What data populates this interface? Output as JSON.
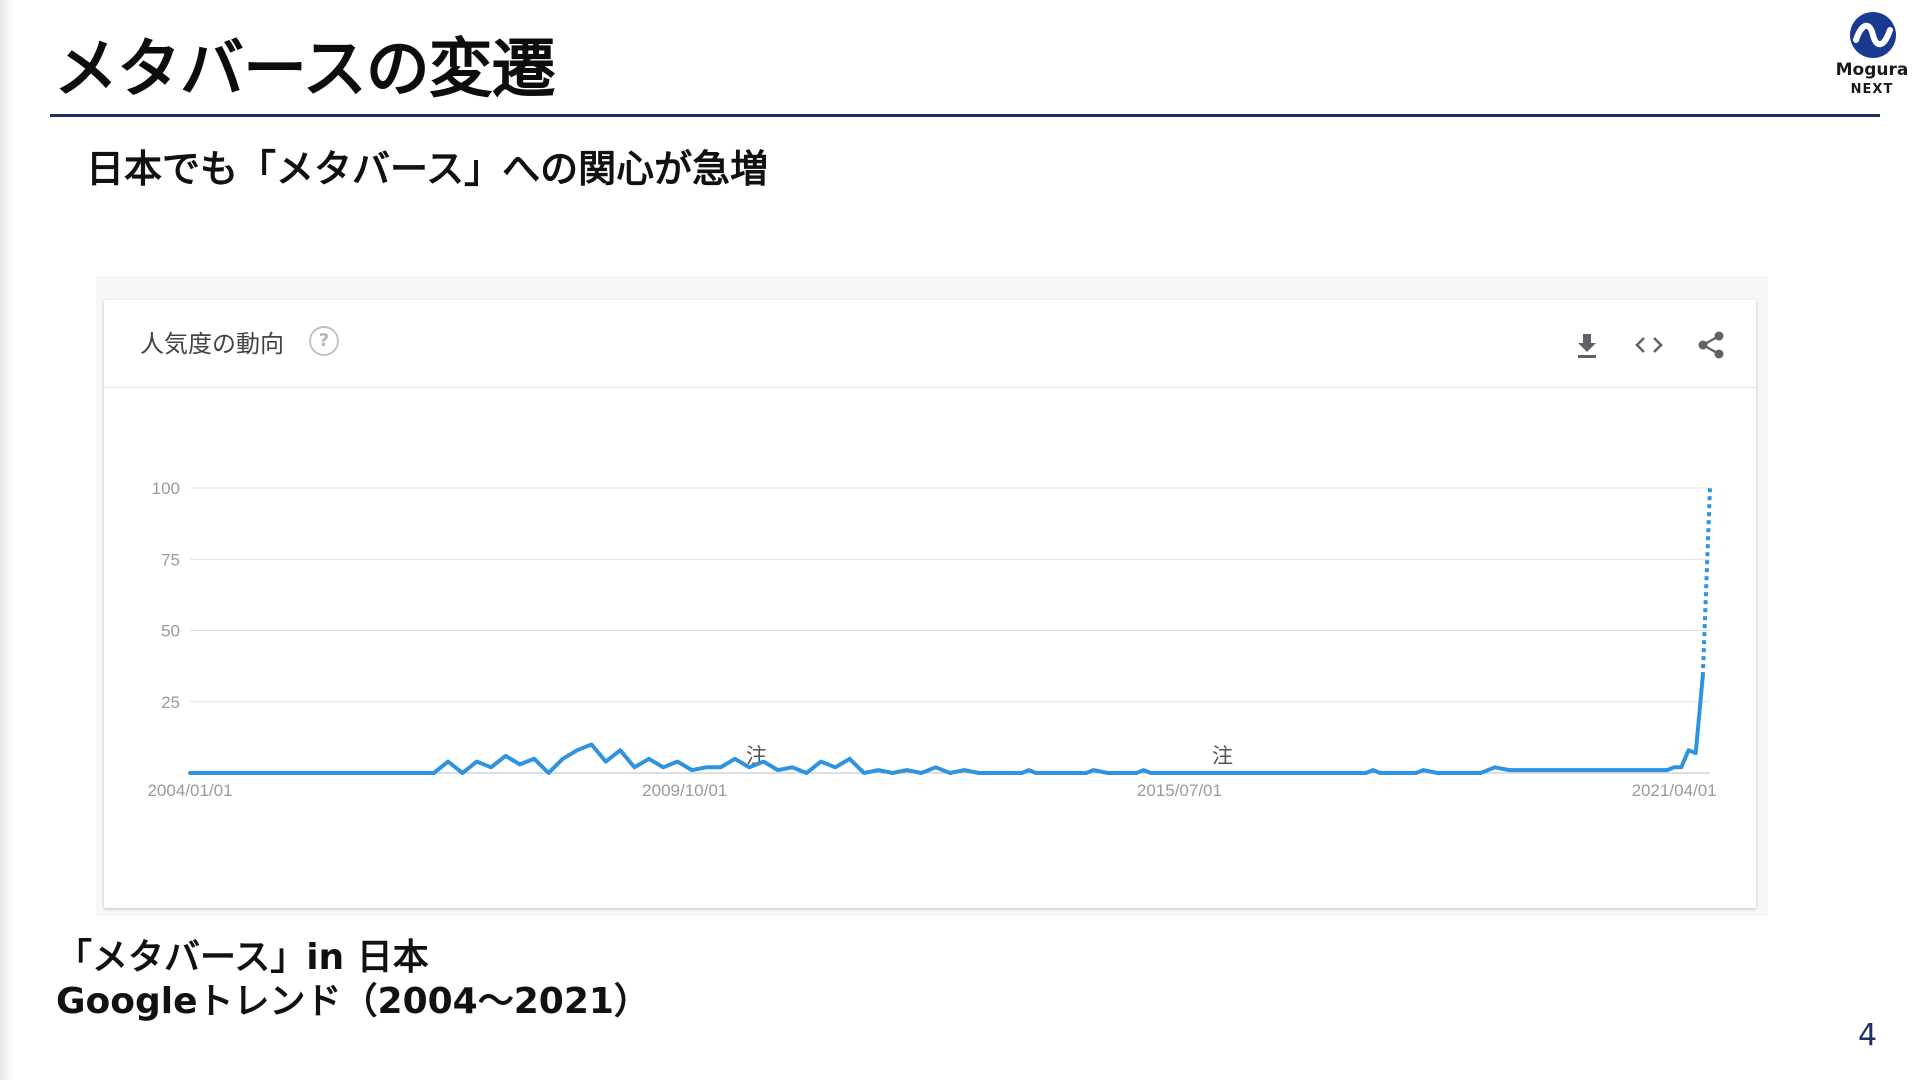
{
  "slide": {
    "title": "メタバースの変遷",
    "subtitle": "日本でも「メタバース」への関心が急増",
    "caption_line1": "「メタバース」in 日本",
    "caption_line2": "Googleトレンド（2004～2021）",
    "page_number": "4"
  },
  "logo": {
    "name": "Mogura",
    "sub": "NEXT",
    "color": "#1a3a8f"
  },
  "chart_card": {
    "title": "人気度の動向",
    "help_symbol": "?",
    "icons": [
      "download-icon",
      "embed-code-icon",
      "share-icon"
    ]
  },
  "colors": {
    "title_rule": "#1f2f6b",
    "series": "#2f93e0",
    "grid": "#e0e0e0",
    "axis_text": "#9a9a9a"
  },
  "chart_data": {
    "type": "line",
    "title": "人気度の動向",
    "xlabel": "",
    "ylabel": "",
    "ylim": [
      0,
      100
    ],
    "yticks": [
      25,
      50,
      75,
      100
    ],
    "ytick_labels": [
      "25",
      "50",
      "75",
      "100"
    ],
    "x_range": [
      "2004/01/01",
      "2021/09/01"
    ],
    "x_ticks": [
      "2004/01/01",
      "2009/10/01",
      "2015/07/01",
      "2021/04/01"
    ],
    "grid": true,
    "legend": "none",
    "annotations": [
      {
        "label": "注",
        "x": "2010/08/01"
      },
      {
        "label": "注",
        "x": "2016/01/01"
      }
    ],
    "series": [
      {
        "points": [
          [
            "2004/01/01",
            0
          ],
          [
            "2006/11/01",
            0
          ],
          [
            "2007/01/01",
            4
          ],
          [
            "2007/03/01",
            0
          ],
          [
            "2007/05/01",
            4
          ],
          [
            "2007/07/01",
            2
          ],
          [
            "2007/09/01",
            6
          ],
          [
            "2007/11/01",
            3
          ],
          [
            "2008/01/01",
            5
          ],
          [
            "2008/03/01",
            0
          ],
          [
            "2008/05/01",
            5
          ],
          [
            "2008/07/01",
            8
          ],
          [
            "2008/09/01",
            10
          ],
          [
            "2008/11/01",
            4
          ],
          [
            "2009/01/01",
            8
          ],
          [
            "2009/03/01",
            2
          ],
          [
            "2009/05/01",
            5
          ],
          [
            "2009/07/01",
            2
          ],
          [
            "2009/09/01",
            4
          ],
          [
            "2009/11/01",
            1
          ],
          [
            "2010/01/01",
            2
          ],
          [
            "2010/03/01",
            2
          ],
          [
            "2010/05/01",
            5
          ],
          [
            "2010/07/01",
            2
          ],
          [
            "2010/09/01",
            4
          ],
          [
            "2010/11/01",
            1
          ],
          [
            "2011/01/01",
            2
          ],
          [
            "2011/03/01",
            0
          ],
          [
            "2011/05/01",
            4
          ],
          [
            "2011/07/01",
            2
          ],
          [
            "2011/09/01",
            5
          ],
          [
            "2011/11/01",
            0
          ],
          [
            "2012/01/01",
            1
          ],
          [
            "2012/03/01",
            0
          ],
          [
            "2012/05/01",
            1
          ],
          [
            "2012/07/01",
            0
          ],
          [
            "2012/09/01",
            2
          ],
          [
            "2012/11/01",
            0
          ],
          [
            "2013/01/01",
            1
          ],
          [
            "2013/03/01",
            0
          ],
          [
            "2013/09/01",
            0
          ],
          [
            "2013/10/01",
            1
          ],
          [
            "2013/11/01",
            0
          ],
          [
            "2014/06/01",
            0
          ],
          [
            "2014/07/01",
            1
          ],
          [
            "2014/09/01",
            0
          ],
          [
            "2015/01/01",
            0
          ],
          [
            "2015/02/01",
            1
          ],
          [
            "2015/03/01",
            0
          ],
          [
            "2017/09/01",
            0
          ],
          [
            "2017/10/01",
            1
          ],
          [
            "2017/11/01",
            0
          ],
          [
            "2018/04/01",
            0
          ],
          [
            "2018/05/01",
            1
          ],
          [
            "2018/07/01",
            0
          ],
          [
            "2019/01/01",
            0
          ],
          [
            "2019/03/01",
            2
          ],
          [
            "2019/05/01",
            1
          ],
          [
            "2019/07/01",
            1
          ],
          [
            "2019/09/01",
            1
          ],
          [
            "2019/11/01",
            1
          ],
          [
            "2020/01/01",
            1
          ],
          [
            "2020/03/01",
            1
          ],
          [
            "2020/05/01",
            1
          ],
          [
            "2020/07/01",
            1
          ],
          [
            "2020/09/01",
            1
          ],
          [
            "2020/11/01",
            1
          ],
          [
            "2021/01/01",
            1
          ],
          [
            "2021/02/01",
            1
          ],
          [
            "2021/03/01",
            1
          ],
          [
            "2021/04/01",
            2
          ],
          [
            "2021/05/01",
            2
          ],
          [
            "2021/06/01",
            8
          ],
          [
            "2021/07/01",
            7
          ],
          [
            "2021/08/01",
            34
          ]
        ],
        "partial_points": [
          [
            "2021/08/01",
            34
          ],
          [
            "2021/09/01",
            100
          ]
        ]
      }
    ]
  }
}
